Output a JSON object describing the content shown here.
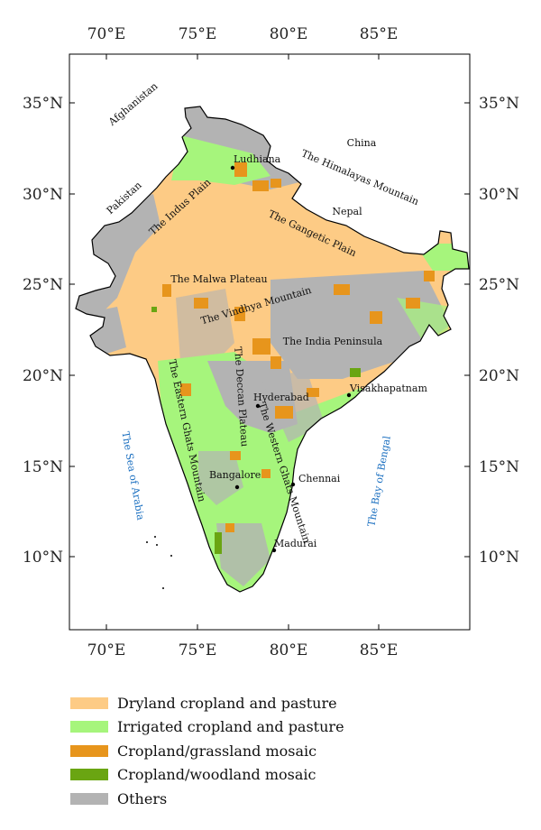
{
  "axes": {
    "x_ticks": [
      "70°E",
      "75°E",
      "80°E",
      "85°E"
    ],
    "y_ticks": [
      "35°N",
      "30°N",
      "25°N",
      "20°N",
      "15°N",
      "10°N"
    ]
  },
  "regions": {
    "afghanistan": "Afghanistan",
    "pakistan": "Pakistan",
    "china": "China",
    "nepal": "Nepal",
    "himalayas": "The Himalayas Mountain",
    "indus_plain": "The Indus Plain",
    "gangetic_plain": "The Gangetic Plain",
    "malwa_plateau": "The Malwa Plateau",
    "vindhya": "The Vindhya Mountain",
    "india_peninsula": "The India Peninsula",
    "deccan": "The Deccan Plateau",
    "eastern_ghats": "The Eastern Ghats Mountain",
    "western_ghats": "The Western Ghats Mountain",
    "sea_arabia": "The Sea of Arabia",
    "bay_bengal": "The Bay of Bengal"
  },
  "cities": {
    "ludhiana": "Ludhiana",
    "hyderabad": "Hyderabad",
    "visakhapatnam": "Visakhapatnam",
    "bangalore": "Bangalore",
    "chennai": "Chennai",
    "madurai": "Madurai"
  },
  "legend": [
    {
      "label": "Dryland cropland and pasture",
      "color": "#fdcb85"
    },
    {
      "label": "Irrigated cropland and pasture",
      "color": "#a6f57c"
    },
    {
      "label": "Cropland/grassland mosaic",
      "color": "#e7951c"
    },
    {
      "label": "Cropland/woodland mosaic",
      "color": "#6aa512"
    },
    {
      "label": "Others",
      "color": "#b3b3b3"
    }
  ]
}
